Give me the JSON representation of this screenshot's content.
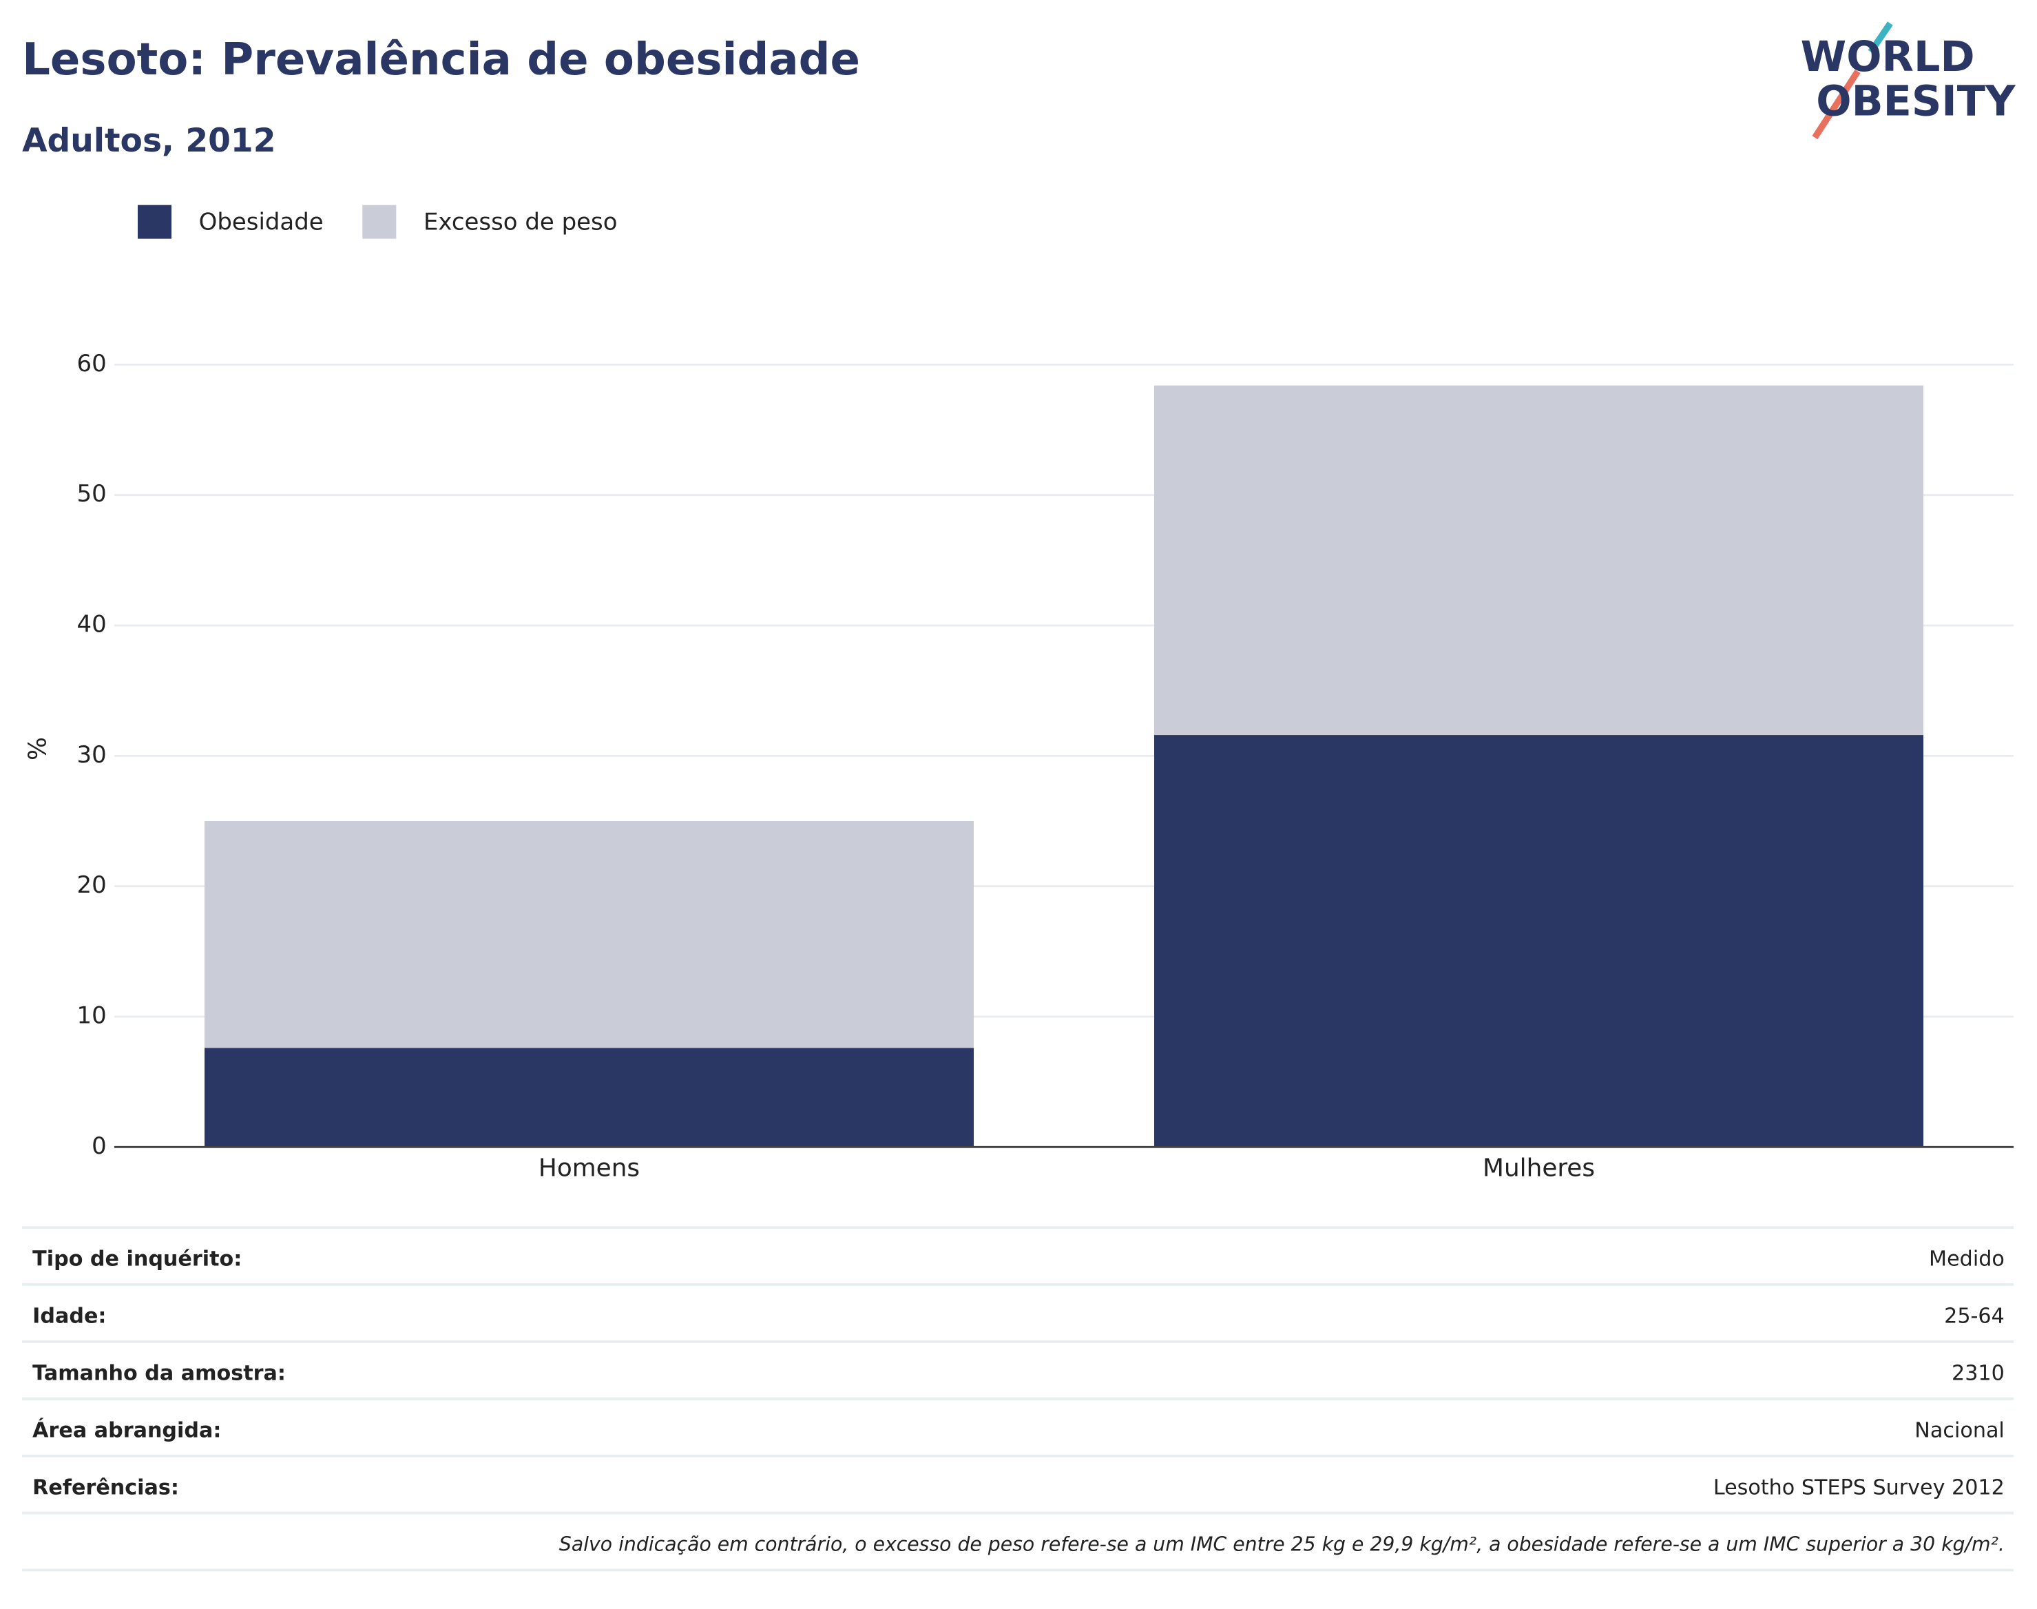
{
  "chart_data": {
    "type": "bar",
    "stacked": true,
    "title": "Lesoto: Prevalência de obesidade",
    "subtitle": "Adultos, 2012",
    "y_label": "%",
    "categories": [
      "Homens",
      "Mulheres"
    ],
    "series": [
      {
        "name": "Obesidade",
        "color": "#2a3664",
        "values": [
          7.6,
          31.6
        ]
      },
      {
        "name": "Excesso de peso",
        "color": "#cacdd8",
        "values": [
          17.4,
          26.8
        ]
      }
    ],
    "ylim": [
      0,
      60
    ],
    "yticks": [
      0,
      10,
      20,
      30,
      40,
      50,
      60
    ],
    "grid": true,
    "legend": "top-left"
  },
  "logo": {
    "lines": [
      "WORLD",
      "OBESITY"
    ]
  },
  "info": {
    "rows": [
      [
        "Tipo de inquérito:",
        "Medido"
      ],
      [
        "Idade:",
        "25-64"
      ],
      [
        "Tamanho da amostra:",
        "2310"
      ],
      [
        "Área abrangida:",
        "Nacional"
      ],
      [
        "Referências:",
        "Lesotho STEPS Survey 2012"
      ]
    ],
    "note": "Salvo indicação em contrário, o excesso de peso refere-se a um IMC entre 25 kg e 29,9 kg/m², a obesidade refere-se a um IMC superior a 30 kg/m²."
  }
}
